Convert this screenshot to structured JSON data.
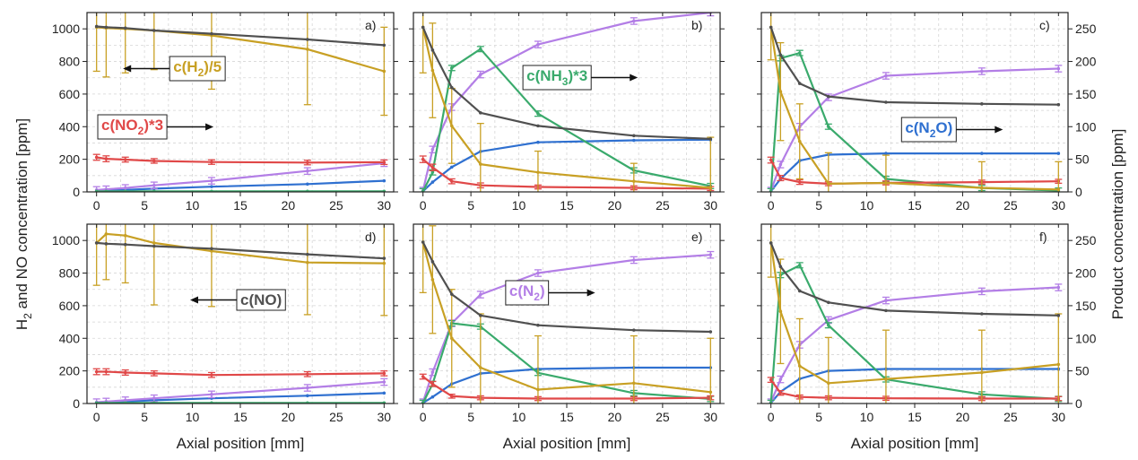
{
  "figure": {
    "left_axis_label": "H2 and NO concentration [ppm]",
    "right_axis_label": "Product concentration [ppm]",
    "x_axis_label": "Axial position [mm]"
  },
  "colors": {
    "NO": "#505050",
    "H2": "#c8a024",
    "NO2": "#e04848",
    "NH3": "#3aaa6c",
    "N2O": "#2f70d0",
    "N2": "#b37ee6"
  },
  "chart_data": [
    {
      "type": "line",
      "panel_label": "a)",
      "x": [
        0,
        1,
        3,
        6,
        12,
        22,
        30
      ],
      "xlim": [
        -1,
        31
      ],
      "xticks": [
        0,
        5,
        10,
        15,
        20,
        25,
        30
      ],
      "ylim_left": [
        0,
        1100
      ],
      "yticks_left": [
        0,
        200,
        400,
        600,
        800,
        1000
      ],
      "ylim_right": [
        0,
        275
      ],
      "yticks_right": [
        0,
        50,
        100,
        150,
        200,
        250
      ],
      "grid": true,
      "series": [
        {
          "key": "NO",
          "axis": "left",
          "values": [
            1015,
            1010,
            1005,
            990,
            970,
            935,
            900
          ]
        },
        {
          "key": "H2",
          "axis": "left",
          "values": [
            1010,
            1005,
            1000,
            990,
            960,
            875,
            740
          ],
          "errors": [
            270,
            300,
            270,
            240,
            330,
            340,
            270
          ]
        },
        {
          "key": "NO2",
          "axis": "left",
          "values": [
            212,
            203,
            198,
            190,
            183,
            180,
            182
          ],
          "errors": [
            18,
            18,
            15,
            14,
            14,
            14,
            14
          ]
        },
        {
          "key": "N2",
          "axis": "right",
          "values": [
            3,
            4,
            6,
            10,
            17,
            32,
            44
          ],
          "errors": [
            5,
            5,
            5,
            5,
            5,
            5,
            5
          ]
        },
        {
          "key": "N2O",
          "axis": "right",
          "values": [
            1,
            2,
            3,
            5,
            8,
            12,
            17
          ]
        },
        {
          "key": "NH3",
          "axis": "right",
          "values": [
            1,
            1,
            1,
            1,
            1,
            1,
            1
          ]
        }
      ],
      "annotations": [
        {
          "text_parts": [
            {
              "t": "c(H"
            },
            {
              "t": "2",
              "sub": true
            },
            {
              "t": ")/5"
            }
          ],
          "color_key": "H2",
          "arrow": "left"
        },
        {
          "text_parts": [
            {
              "t": "c(NO"
            },
            {
              "t": "2",
              "sub": true
            },
            {
              "t": ")*3"
            }
          ],
          "color_key": "NO2",
          "arrow": "right"
        }
      ]
    },
    {
      "type": "line",
      "panel_label": "b)",
      "x": [
        0,
        1,
        3,
        6,
        12,
        22,
        30
      ],
      "xlim": [
        -1,
        31
      ],
      "xticks": [
        0,
        5,
        10,
        15,
        20,
        25,
        30
      ],
      "ylim_left": [
        0,
        1100
      ],
      "yticks_left": [
        0,
        200,
        400,
        600,
        800,
        1000
      ],
      "ylim_right": [
        0,
        275
      ],
      "yticks_right": [
        0,
        50,
        100,
        150,
        200,
        250
      ],
      "grid": true,
      "series": [
        {
          "key": "NO",
          "axis": "left",
          "values": [
            1010,
            870,
            640,
            485,
            405,
            345,
            325
          ]
        },
        {
          "key": "H2",
          "axis": "left",
          "values": [
            1010,
            745,
            405,
            170,
            120,
            65,
            25
          ],
          "errors": [
            280,
            290,
            230,
            250,
            130,
            110,
            310
          ]
        },
        {
          "key": "NO2",
          "axis": "left",
          "values": [
            200,
            150,
            65,
            40,
            30,
            25,
            20
          ],
          "errors": [
            20,
            20,
            15,
            15,
            12,
            12,
            12
          ]
        },
        {
          "key": "N2",
          "axis": "right",
          "values": [
            2,
            65,
            130,
            180,
            226,
            262,
            275
          ],
          "errors": [
            5,
            5,
            5,
            5,
            5,
            5,
            5
          ]
        },
        {
          "key": "N2O",
          "axis": "right",
          "values": [
            1,
            15,
            38,
            62,
            76,
            79,
            80
          ]
        },
        {
          "key": "NH3",
          "axis": "right",
          "values": [
            1,
            30,
            190,
            219,
            120,
            33,
            9
          ],
          "errors": [
            4,
            4,
            4,
            4,
            4,
            4,
            4
          ]
        }
      ],
      "annotations": [
        {
          "text_parts": [
            {
              "t": "c(NH"
            },
            {
              "t": "3",
              "sub": true
            },
            {
              "t": ")*3"
            }
          ],
          "color_key": "NH3",
          "arrow": "right"
        }
      ]
    },
    {
      "type": "line",
      "panel_label": "c)",
      "x": [
        0,
        1,
        3,
        6,
        12,
        22,
        30
      ],
      "xlim": [
        -1,
        31
      ],
      "xticks": [
        0,
        5,
        10,
        15,
        20,
        25,
        30
      ],
      "ylim_left": [
        0,
        1100
      ],
      "yticks_left": [
        0,
        200,
        400,
        600,
        800,
        1000
      ],
      "ylim_right": [
        0,
        275
      ],
      "yticks_right": [
        0,
        50,
        100,
        150,
        200,
        250
      ],
      "grid": true,
      "series": [
        {
          "key": "NO",
          "axis": "left",
          "values": [
            1010,
            840,
            665,
            585,
            550,
            540,
            535
          ]
        },
        {
          "key": "H2",
          "axis": "left",
          "values": [
            1010,
            615,
            310,
            50,
            55,
            25,
            15
          ],
          "errors": [
            200,
            300,
            230,
            190,
            170,
            160,
            170
          ]
        },
        {
          "key": "NO2",
          "axis": "left",
          "values": [
            195,
            85,
            60,
            50,
            55,
            60,
            65
          ],
          "errors": [
            18,
            16,
            14,
            12,
            12,
            12,
            12
          ]
        },
        {
          "key": "N2",
          "axis": "right",
          "values": [
            2,
            42,
            100,
            145,
            178,
            185,
            189
          ],
          "errors": [
            5,
            5,
            5,
            5,
            5,
            5,
            5
          ]
        },
        {
          "key": "N2O",
          "axis": "right",
          "values": [
            1,
            20,
            48,
            57,
            59,
            59,
            59
          ]
        },
        {
          "key": "NH3",
          "axis": "right",
          "values": [
            1,
            205,
            213,
            100,
            20,
            6,
            2
          ],
          "errors": [
            4,
            4,
            4,
            4,
            4,
            4,
            4
          ]
        }
      ],
      "annotations": [
        {
          "text_parts": [
            {
              "t": "c(N"
            },
            {
              "t": "2",
              "sub": true
            },
            {
              "t": "O)"
            }
          ],
          "color_key": "N2O",
          "arrow": "right"
        }
      ]
    },
    {
      "type": "line",
      "panel_label": "d)",
      "x": [
        0,
        1,
        3,
        6,
        12,
        22,
        30
      ],
      "xlim": [
        -1,
        31
      ],
      "xticks": [
        0,
        5,
        10,
        15,
        20,
        25,
        30
      ],
      "ylim_left": [
        0,
        1100
      ],
      "yticks_left": [
        0,
        200,
        400,
        600,
        800,
        1000
      ],
      "ylim_right": [
        0,
        275
      ],
      "yticks_right": [
        0,
        50,
        100,
        150,
        200,
        250
      ],
      "grid": true,
      "series": [
        {
          "key": "NO",
          "axis": "left",
          "values": [
            985,
            980,
            975,
            965,
            950,
            915,
            890
          ]
        },
        {
          "key": "H2",
          "axis": "left",
          "values": [
            985,
            1040,
            1030,
            985,
            935,
            865,
            860
          ],
          "errors": [
            260,
            280,
            290,
            380,
            340,
            320,
            320
          ]
        },
        {
          "key": "NO2",
          "axis": "left",
          "values": [
            195,
            195,
            190,
            185,
            175,
            180,
            185
          ],
          "errors": [
            18,
            18,
            16,
            15,
            15,
            15,
            15
          ]
        },
        {
          "key": "N2",
          "axis": "right",
          "values": [
            2,
            3,
            5,
            8,
            14,
            24,
            33
          ],
          "errors": [
            5,
            5,
            5,
            5,
            5,
            5,
            5
          ]
        },
        {
          "key": "N2O",
          "axis": "right",
          "values": [
            1,
            2,
            3,
            5,
            8,
            12,
            16
          ]
        },
        {
          "key": "NH3",
          "axis": "right",
          "values": [
            1,
            1,
            1,
            1,
            1,
            1,
            1
          ]
        }
      ],
      "annotations": [
        {
          "text_parts": [
            {
              "t": "c(NO)"
            }
          ],
          "color_key": "NO",
          "arrow": "left"
        }
      ]
    },
    {
      "type": "line",
      "panel_label": "e)",
      "x": [
        0,
        1,
        3,
        6,
        12,
        22,
        30
      ],
      "xlim": [
        -1,
        31
      ],
      "xticks": [
        0,
        5,
        10,
        15,
        20,
        25,
        30
      ],
      "ylim_left": [
        0,
        1100
      ],
      "yticks_left": [
        0,
        200,
        400,
        600,
        800,
        1000
      ],
      "ylim_right": [
        0,
        275
      ],
      "yticks_right": [
        0,
        50,
        100,
        150,
        200,
        250
      ],
      "grid": true,
      "series": [
        {
          "key": "NO",
          "axis": "left",
          "values": [
            990,
            870,
            670,
            540,
            480,
            450,
            440
          ]
        },
        {
          "key": "H2",
          "axis": "left",
          "values": [
            990,
            760,
            400,
            220,
            85,
            125,
            70
          ],
          "errors": [
            310,
            330,
            300,
            330,
            330,
            290,
            330
          ]
        },
        {
          "key": "NO2",
          "axis": "left",
          "values": [
            165,
            120,
            45,
            35,
            30,
            30,
            35
          ],
          "errors": [
            15,
            15,
            12,
            12,
            12,
            12,
            12
          ]
        },
        {
          "key": "N2",
          "axis": "right",
          "values": [
            2,
            48,
            123,
            167,
            200,
            220,
            228
          ],
          "errors": [
            5,
            5,
            5,
            5,
            5,
            5,
            5
          ]
        },
        {
          "key": "N2O",
          "axis": "right",
          "values": [
            1,
            10,
            30,
            46,
            53,
            55,
            55
          ]
        },
        {
          "key": "NH3",
          "axis": "right",
          "values": [
            1,
            30,
            123,
            118,
            47,
            16,
            7
          ],
          "errors": [
            4,
            4,
            4,
            4,
            4,
            4,
            4
          ]
        }
      ],
      "annotations": [
        {
          "text_parts": [
            {
              "t": "c(N"
            },
            {
              "t": "2",
              "sub": true
            },
            {
              "t": ")"
            }
          ],
          "color_key": "N2",
          "arrow": "right"
        }
      ]
    },
    {
      "type": "line",
      "panel_label": "f)",
      "x": [
        0,
        1,
        3,
        6,
        12,
        22,
        30
      ],
      "xlim": [
        -1,
        31
      ],
      "xticks": [
        0,
        5,
        10,
        15,
        20,
        25,
        30
      ],
      "ylim_left": [
        0,
        1100
      ],
      "yticks_left": [
        0,
        200,
        400,
        600,
        800,
        1000
      ],
      "ylim_right": [
        0,
        275
      ],
      "yticks_right": [
        0,
        50,
        100,
        150,
        200,
        250
      ],
      "grid": true,
      "series": [
        {
          "key": "NO",
          "axis": "left",
          "values": [
            985,
            840,
            690,
            620,
            570,
            550,
            540
          ]
        },
        {
          "key": "H2",
          "axis": "left",
          "values": [
            985,
            565,
            230,
            125,
            150,
            190,
            240
          ],
          "errors": [
            210,
            320,
            290,
            280,
            300,
            260,
            310
          ]
        },
        {
          "key": "NO2",
          "axis": "left",
          "values": [
            145,
            65,
            40,
            35,
            32,
            30,
            30
          ],
          "errors": [
            15,
            14,
            12,
            12,
            12,
            12,
            12
          ]
        },
        {
          "key": "N2",
          "axis": "right",
          "values": [
            2,
            37,
            90,
            128,
            158,
            172,
            178
          ],
          "errors": [
            5,
            5,
            5,
            5,
            5,
            5,
            5
          ]
        },
        {
          "key": "N2O",
          "axis": "right",
          "values": [
            1,
            18,
            38,
            50,
            53,
            53,
            53
          ]
        },
        {
          "key": "NH3",
          "axis": "right",
          "values": [
            1,
            197,
            212,
            120,
            37,
            14,
            7
          ],
          "errors": [
            4,
            4,
            4,
            4,
            4,
            4,
            4
          ]
        }
      ],
      "annotations": []
    }
  ]
}
